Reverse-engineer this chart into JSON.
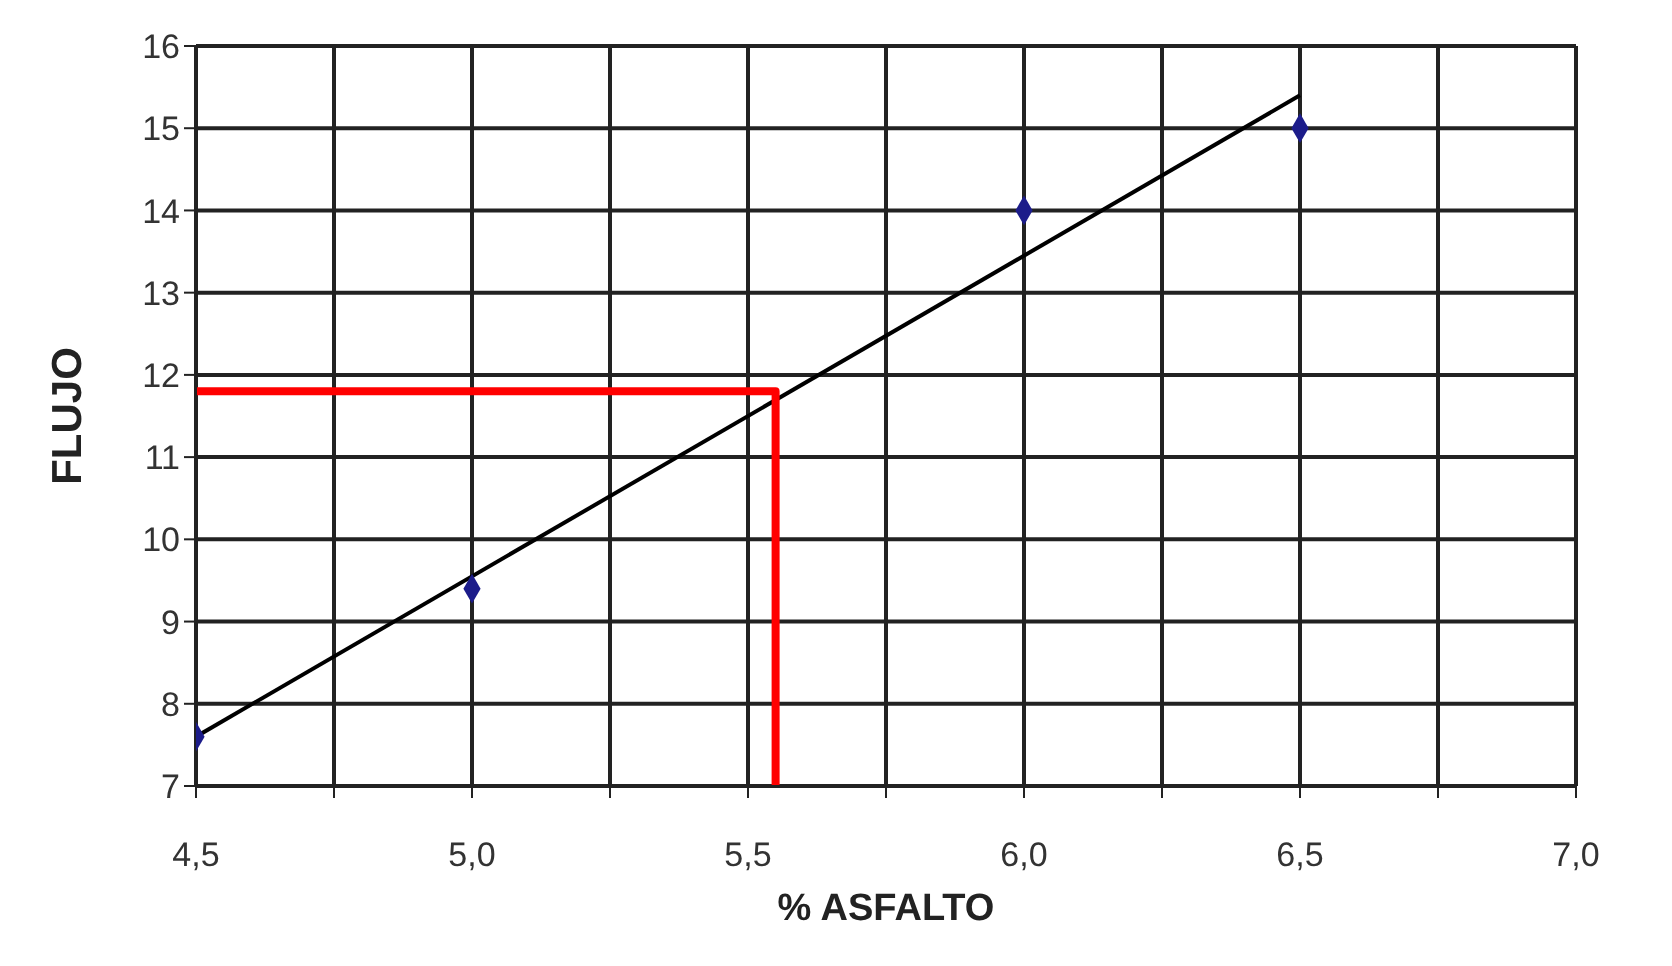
{
  "chart_data": {
    "type": "scatter",
    "xlabel": "% ASFALTO",
    "ylabel": "FLUJO",
    "xlim": [
      4.5,
      7.0
    ],
    "xticks": [
      {
        "value": 4.5,
        "label": "4,5"
      },
      {
        "value": 4.75,
        "label": null
      },
      {
        "value": 5.0,
        "label": "5,0"
      },
      {
        "value": 5.25,
        "label": null
      },
      {
        "value": 5.5,
        "label": "5,5"
      },
      {
        "value": 5.75,
        "label": null
      },
      {
        "value": 6.0,
        "label": "6,0"
      },
      {
        "value": 6.25,
        "label": null
      },
      {
        "value": 6.5,
        "label": "6,5"
      },
      {
        "value": 6.75,
        "label": null
      },
      {
        "value": 7.0,
        "label": "7,0"
      }
    ],
    "ylim": [
      7,
      16
    ],
    "yticks": [
      7,
      8,
      9,
      10,
      11,
      12,
      13,
      14,
      15,
      16
    ],
    "grid": true,
    "marker": "diamond",
    "series": [
      {
        "color": "#1c1c8a",
        "x": [
          4.5,
          5.0,
          6.0,
          6.5
        ],
        "values": [
          7.6,
          9.4,
          14.0,
          15.0
        ]
      },
      {
        "type": "line",
        "color": "#000000",
        "line_style": "solid",
        "marker": "none",
        "x": [
          4.5,
          6.5
        ],
        "values": [
          7.6,
          15.4
        ]
      },
      {
        "type": "line",
        "color": "#ff0000",
        "line_style": "solid",
        "marker": "none",
        "x": [
          4.5,
          5.55,
          5.55
        ],
        "values": [
          11.8,
          11.8,
          7.0
        ]
      }
    ]
  }
}
